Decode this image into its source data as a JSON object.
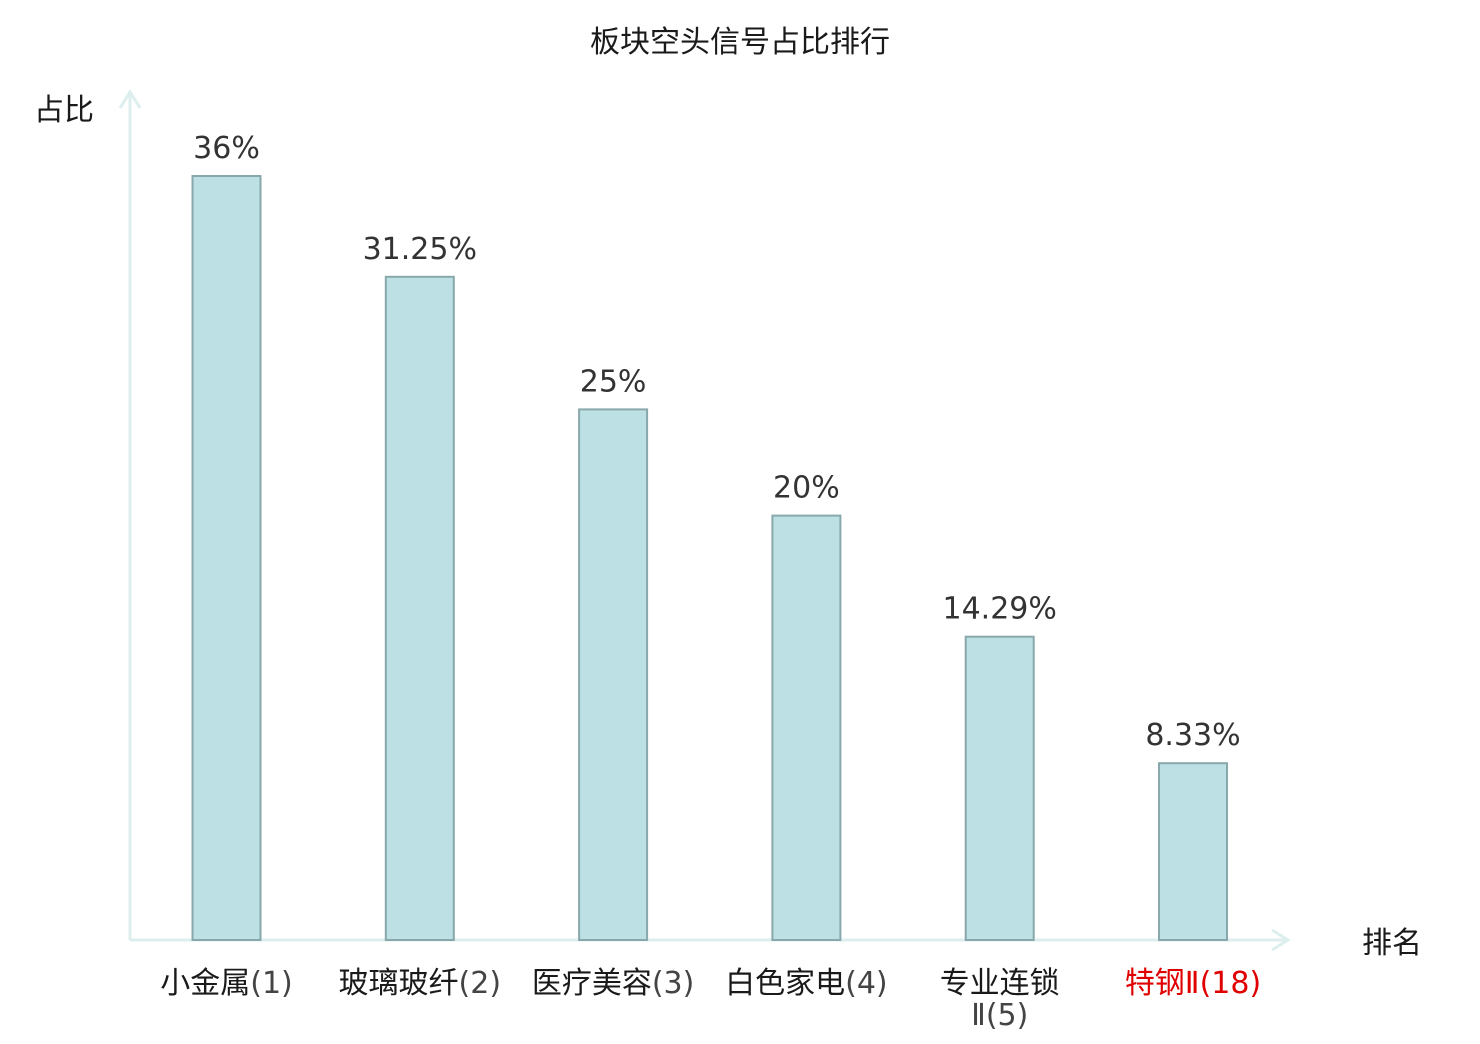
{
  "chart_data": {
    "type": "bar",
    "title": "板块空头信号占比排行",
    "ylabel": "占比",
    "xlabel": "排名",
    "ylim": [
      0,
      40
    ],
    "grid": false,
    "legend": "none",
    "categories": [
      {
        "name": "小金属",
        "rank": "(1)",
        "lines": [
          "小金属",
          "(1)"
        ],
        "highlight": false
      },
      {
        "name": "玻璃玻纤",
        "rank": "(2)",
        "lines": [
          "玻璃玻纤",
          "(2)"
        ],
        "highlight": false
      },
      {
        "name": "医疗美容",
        "rank": "(3)",
        "lines": [
          "医疗美容",
          "(3)"
        ],
        "highlight": false
      },
      {
        "name": "白色家电",
        "rank": "(4)",
        "lines": [
          "白色家电",
          "(4)"
        ],
        "highlight": false
      },
      {
        "name": "专业连锁Ⅱ",
        "rank": "(5)",
        "lines": [
          "专业连锁",
          "Ⅱ(5)"
        ],
        "highlight": false
      },
      {
        "name": "特钢Ⅱ",
        "rank": "(18)",
        "lines": [
          "特钢Ⅱ",
          "(18)"
        ],
        "highlight": true
      }
    ],
    "values": [
      36,
      31.25,
      25,
      20,
      14.29,
      8.33
    ],
    "value_labels": [
      "36%",
      "31.25%",
      "25%",
      "20%",
      "14.29%",
      "8.33%"
    ]
  },
  "colors": {
    "bar_fill": "#bce0e3",
    "bar_stroke": "#88a8ab",
    "axis": "#dcefee",
    "text": "#1a1a1a",
    "value_text": "#333333",
    "rank_text": "#444444",
    "highlight": "#e00000"
  }
}
